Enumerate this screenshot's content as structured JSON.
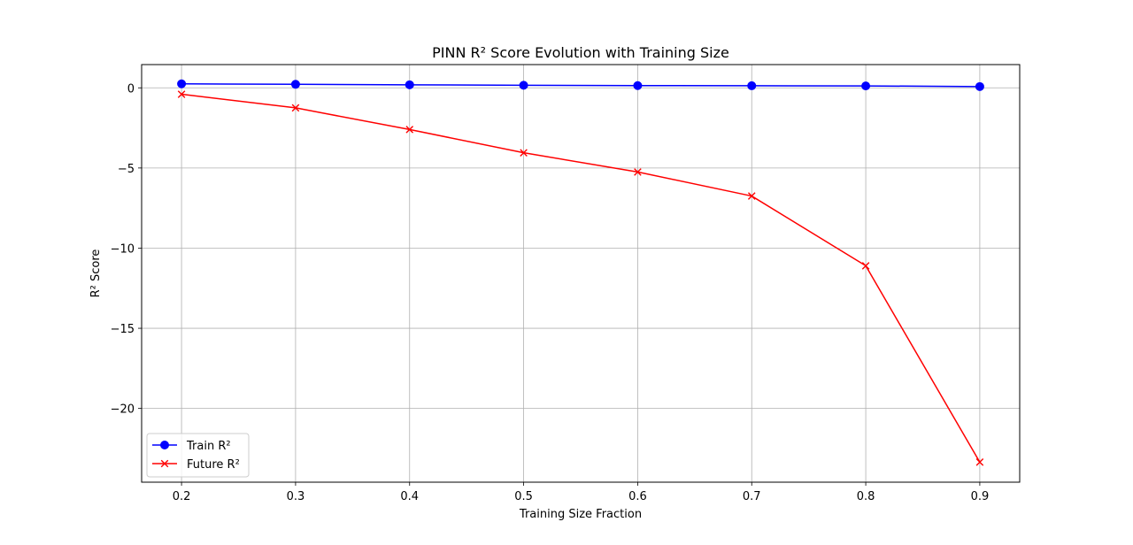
{
  "chart_data": {
    "type": "line",
    "title": "PINN R² Score Evolution with Training Size",
    "xlabel": "Training Size Fraction",
    "ylabel": "R² Score",
    "x": [
      0.2,
      0.3,
      0.4,
      0.5,
      0.6,
      0.7,
      0.8,
      0.9
    ],
    "x_tick_labels": [
      "0.2",
      "0.3",
      "0.4",
      "0.5",
      "0.6",
      "0.7",
      "0.8",
      "0.9"
    ],
    "y_ticks": [
      0,
      -5,
      -10,
      -15,
      -20
    ],
    "y_tick_labels": [
      "0",
      "−5",
      "−10",
      "−15",
      "−20"
    ],
    "xlim": [
      0.165,
      0.935
    ],
    "ylim": [
      -24.6,
      1.45
    ],
    "grid": true,
    "legend_position": "lower-left",
    "series": [
      {
        "name": "Train R²",
        "color": "#0000ff",
        "marker": "circle",
        "values": [
          0.25,
          0.22,
          0.19,
          0.16,
          0.14,
          0.13,
          0.12,
          0.08
        ]
      },
      {
        "name": "Future R²",
        "color": "#ff0000",
        "marker": "x",
        "values": [
          -0.4,
          -1.25,
          -2.6,
          -4.05,
          -5.25,
          -6.75,
          -11.1,
          -23.35
        ]
      }
    ]
  }
}
